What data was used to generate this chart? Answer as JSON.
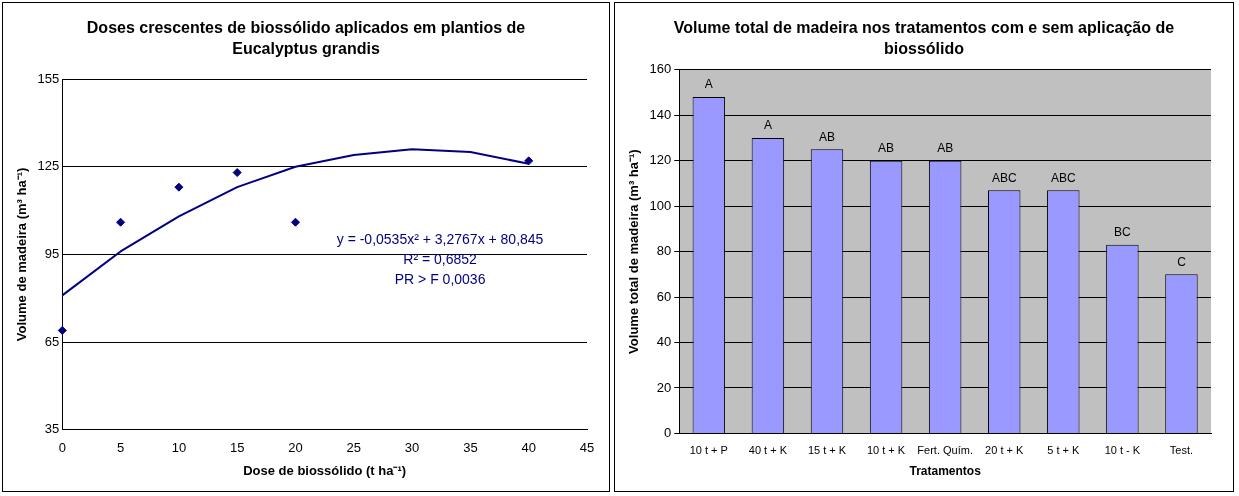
{
  "chart_data": [
    {
      "type": "scatter",
      "title": "Doses crescentes de biossólido aplicados em plantios de Eucalyptus grandis",
      "xlabel": "Dose de biossólido (t ha⁻¹)",
      "ylabel": "Volume de madeira (m³ ha⁻¹)",
      "xlim": [
        0,
        45
      ],
      "xticks": [
        0,
        5,
        10,
        15,
        20,
        25,
        30,
        35,
        40,
        45
      ],
      "ylim": [
        35,
        155
      ],
      "yticks": [
        35,
        65,
        95,
        125,
        155
      ],
      "grid": "y",
      "legend": false,
      "marker": "diamond",
      "series": [
        {
          "type": "line",
          "color": "#000080",
          "marker": "none",
          "x": [
            0,
            5,
            10,
            15,
            20,
            25,
            30,
            35,
            40
          ],
          "values": [
            81,
            96,
            108,
            118,
            125,
            129,
            131,
            130,
            126
          ]
        },
        {
          "type": "scatter",
          "color": "#000080",
          "x": [
            0,
            5,
            10,
            15,
            20,
            40
          ],
          "values": [
            69,
            106,
            118,
            123,
            106,
            127
          ]
        }
      ],
      "annotations": [
        "y = -0,0535x² + 3,2767x + 80,845",
        "R² = 0,6852",
        "PR > F 0,0036"
      ]
    },
    {
      "type": "bar",
      "title": "Volume total de madeira nos tratamentos com e sem aplicação de biossólido",
      "xlabel": "Tratamentos",
      "ylabel": "Volume total de madeira (m³ ha⁻¹)",
      "categories": [
        "10 t + P",
        "40 t + K",
        "15 t + K",
        "10 t + K",
        "Fert. Quím.",
        "20 t + K",
        "5 t + K",
        "10 t - K",
        "Test."
      ],
      "ylim": [
        0,
        160
      ],
      "yticks": [
        0,
        20,
        40,
        60,
        80,
        100,
        120,
        140,
        160
      ],
      "grid": "y",
      "legend": false,
      "series": [
        {
          "color": "#9999ff",
          "values": [
            148,
            130,
            125,
            120,
            120,
            107,
            107,
            83,
            70
          ],
          "value_labels": [
            "A",
            "A",
            "AB",
            "AB",
            "AB",
            "ABC",
            "ABC",
            "BC",
            "C"
          ]
        }
      ]
    }
  ]
}
